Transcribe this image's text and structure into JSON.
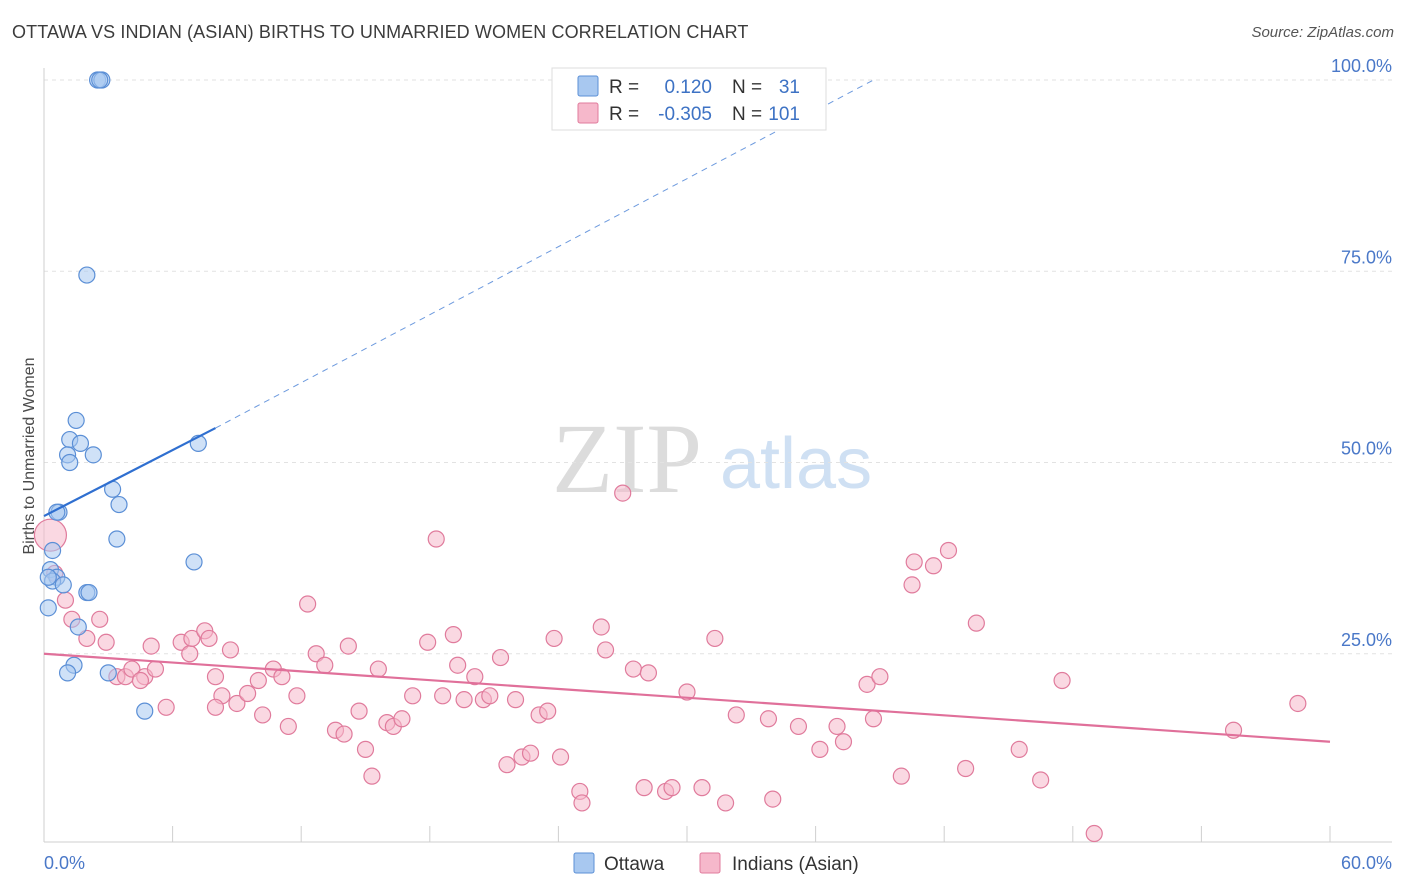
{
  "header": {
    "title": "OTTAWA VS INDIAN (ASIAN) BIRTHS TO UNMARRIED WOMEN CORRELATION CHART",
    "source": "Source: ZipAtlas.com"
  },
  "watermark": {
    "zip": "ZIP",
    "atlas": "atlas"
  },
  "legend_top": {
    "rows": [
      {
        "r_label": "R =",
        "r_value": "0.120",
        "n_label": "N =",
        "n_value": "31"
      },
      {
        "r_label": "R =",
        "r_value": "-0.305",
        "n_label": "N =",
        "n_value": "101"
      }
    ]
  },
  "legend_bottom": {
    "series1": "Ottawa",
    "series2": "Indians (Asian)"
  },
  "colors": {
    "ottawa_fill": "#a8c8f0",
    "ottawa_stroke": "#5b8fd6",
    "ottawa_line": "#2f6fd0",
    "indian_fill": "#f6b8cb",
    "indian_stroke": "#e07b9c",
    "indian_line": "#e0709a",
    "tick_text": "#4a78c8",
    "grid": "#e2e2e2"
  },
  "chart_data": {
    "type": "scatter",
    "title": "OTTAWA VS INDIAN (ASIAN) BIRTHS TO UNMARRIED WOMEN CORRELATION CHART",
    "xlabel": "",
    "ylabel": "Births to Unmarried Women",
    "xlim": [
      0,
      60
    ],
    "ylim": [
      0,
      100
    ],
    "x_tick_labels": [
      "0.0%",
      "60.0%"
    ],
    "y_ticks": [
      25,
      50,
      75,
      100
    ],
    "y_tick_labels": [
      "25.0%",
      "50.0%",
      "75.0%",
      "100.0%"
    ],
    "grid": true,
    "series": [
      {
        "name": "Ottawa",
        "R": 0.12,
        "N": 31,
        "trend": {
          "x": [
            0,
            8
          ],
          "y": [
            43,
            54.5
          ],
          "extended_to": [
            38.7,
            100
          ]
        },
        "points": [
          [
            2.5,
            100
          ],
          [
            2.7,
            100
          ],
          [
            2.6,
            100
          ],
          [
            2.0,
            74.5
          ],
          [
            1.5,
            55.5
          ],
          [
            1.2,
            53
          ],
          [
            1.7,
            52.5
          ],
          [
            1.1,
            51
          ],
          [
            1.2,
            50
          ],
          [
            2.3,
            51
          ],
          [
            7.2,
            52.5
          ],
          [
            3.2,
            46.5
          ],
          [
            3.5,
            44.5
          ],
          [
            0.7,
            43.5
          ],
          [
            0.6,
            43.5
          ],
          [
            3.4,
            40
          ],
          [
            7.0,
            37
          ],
          [
            0.4,
            38.5
          ],
          [
            0.3,
            36
          ],
          [
            0.6,
            35
          ],
          [
            0.4,
            34.5
          ],
          [
            0.9,
            34
          ],
          [
            2.0,
            33
          ],
          [
            2.1,
            33
          ],
          [
            0.2,
            31
          ],
          [
            1.6,
            28.5
          ],
          [
            1.4,
            23.5
          ],
          [
            1.1,
            22.5
          ],
          [
            3.0,
            22.5
          ],
          [
            4.7,
            17.5
          ],
          [
            0.2,
            35
          ]
        ]
      },
      {
        "name": "Indians (Asian)",
        "R": -0.305,
        "N": 101,
        "trend": {
          "x": [
            0,
            60
          ],
          "y": [
            25,
            13.5
          ]
        },
        "points": [
          [
            0.3,
            40.5
          ],
          [
            0.5,
            35.5
          ],
          [
            1.0,
            32
          ],
          [
            1.3,
            29.5
          ],
          [
            2.0,
            27
          ],
          [
            2.6,
            29.5
          ],
          [
            2.9,
            26.5
          ],
          [
            3.4,
            22
          ],
          [
            3.8,
            22
          ],
          [
            4.1,
            23
          ],
          [
            4.7,
            22
          ],
          [
            4.5,
            21.5
          ],
          [
            5.2,
            23
          ],
          [
            5.7,
            18
          ],
          [
            6.4,
            26.5
          ],
          [
            6.8,
            25
          ],
          [
            6.9,
            27
          ],
          [
            7.5,
            28
          ],
          [
            7.7,
            27
          ],
          [
            8.0,
            22
          ],
          [
            8.3,
            19.5
          ],
          [
            8.7,
            25.5
          ],
          [
            9.0,
            18.5
          ],
          [
            9.5,
            19.8
          ],
          [
            10.0,
            21.5
          ],
          [
            10.2,
            17
          ],
          [
            10.7,
            23
          ],
          [
            11.1,
            22
          ],
          [
            11.4,
            15.5
          ],
          [
            11.8,
            19.5
          ],
          [
            12.3,
            31.5
          ],
          [
            12.7,
            25
          ],
          [
            13.1,
            23.5
          ],
          [
            13.6,
            15
          ],
          [
            14.0,
            14.5
          ],
          [
            14.2,
            26
          ],
          [
            14.7,
            17.5
          ],
          [
            15.0,
            12.5
          ],
          [
            15.3,
            9
          ],
          [
            15.6,
            23
          ],
          [
            16.0,
            16
          ],
          [
            16.3,
            15.5
          ],
          [
            16.7,
            16.5
          ],
          [
            17.2,
            19.5
          ],
          [
            17.9,
            26.5
          ],
          [
            18.3,
            40
          ],
          [
            18.6,
            19.5
          ],
          [
            19.1,
            27.5
          ],
          [
            19.3,
            23.5
          ],
          [
            19.6,
            19
          ],
          [
            20.1,
            22
          ],
          [
            20.5,
            19
          ],
          [
            20.8,
            19.5
          ],
          [
            21.3,
            24.5
          ],
          [
            21.6,
            10.5
          ],
          [
            22.0,
            19
          ],
          [
            22.3,
            11.5
          ],
          [
            22.7,
            12
          ],
          [
            23.1,
            17
          ],
          [
            23.5,
            17.5
          ],
          [
            23.8,
            27
          ],
          [
            24.1,
            11.5
          ],
          [
            25.0,
            7
          ],
          [
            25.1,
            5.5
          ],
          [
            26.0,
            28.5
          ],
          [
            26.2,
            25.5
          ],
          [
            27.0,
            46
          ],
          [
            27.5,
            23
          ],
          [
            28.0,
            7.5
          ],
          [
            28.2,
            22.5
          ],
          [
            29.0,
            7
          ],
          [
            29.3,
            7.5
          ],
          [
            30.0,
            20
          ],
          [
            30.7,
            7.5
          ],
          [
            31.3,
            27
          ],
          [
            31.8,
            5.5
          ],
          [
            32.3,
            17
          ],
          [
            33.8,
            16.5
          ],
          [
            34.0,
            6
          ],
          [
            35.2,
            15.5
          ],
          [
            36.2,
            12.5
          ],
          [
            37.0,
            15.5
          ],
          [
            37.3,
            13.5
          ],
          [
            38.4,
            21
          ],
          [
            38.7,
            16.5
          ],
          [
            39.0,
            22
          ],
          [
            40.0,
            9
          ],
          [
            40.5,
            34
          ],
          [
            40.6,
            37
          ],
          [
            41.5,
            36.5
          ],
          [
            42.2,
            38.5
          ],
          [
            43.0,
            10
          ],
          [
            43.5,
            29
          ],
          [
            45.5,
            12.5
          ],
          [
            46.5,
            8.5
          ],
          [
            47.5,
            21.5
          ],
          [
            49.0,
            1.5
          ],
          [
            55.5,
            15
          ],
          [
            58.5,
            18.5
          ],
          [
            8.0,
            18
          ],
          [
            5.0,
            26
          ]
        ]
      }
    ]
  }
}
